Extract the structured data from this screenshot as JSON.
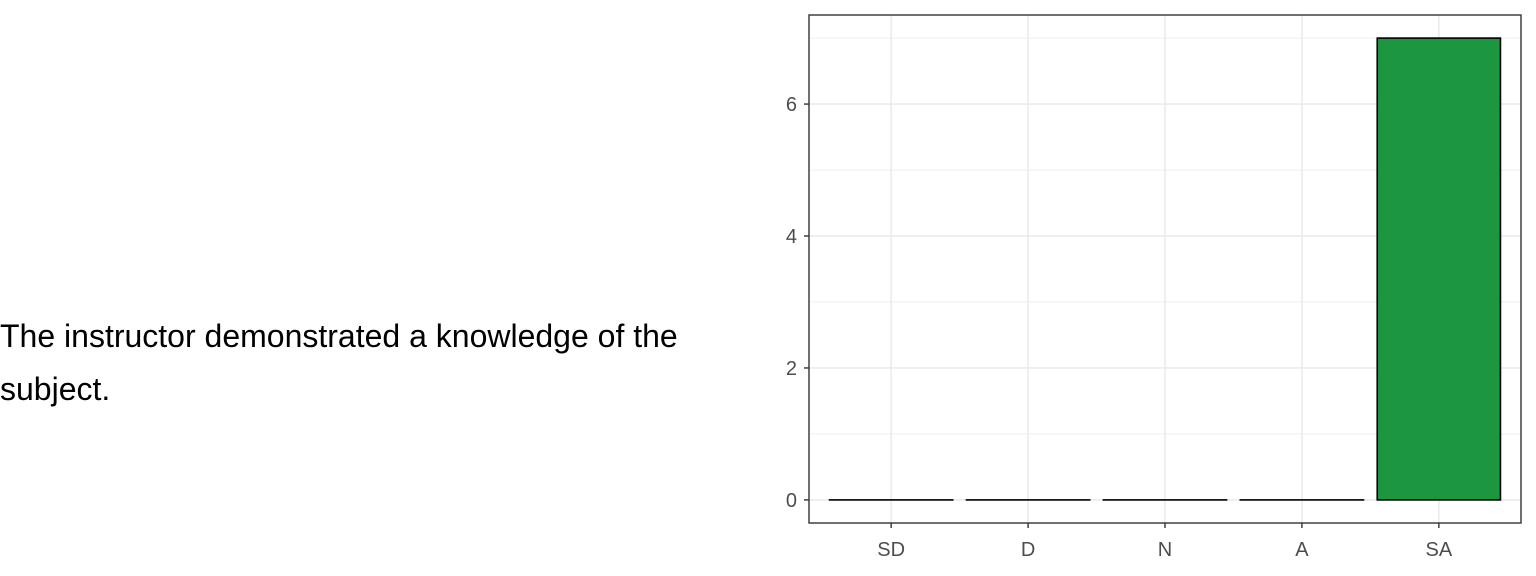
{
  "question": {
    "text": "The instructor demonstrated a knowledge of the subject."
  },
  "chart_data": {
    "type": "bar",
    "categories": [
      "SD",
      "D",
      "N",
      "A",
      "SA"
    ],
    "values": [
      0,
      0,
      0,
      0,
      7
    ],
    "title": "",
    "xlabel": "",
    "ylabel": "",
    "ylim": [
      -0.35,
      7.35
    ],
    "yticks": [
      0,
      2,
      4,
      6
    ],
    "grid": true,
    "bar_colors": [
      "#1c963f",
      "#1c963f",
      "#1c963f",
      "#1c963f",
      "#1c963f"
    ],
    "bar_outline": "#000000",
    "grid_color": "#ebebeb",
    "panel_border": "#333333"
  }
}
